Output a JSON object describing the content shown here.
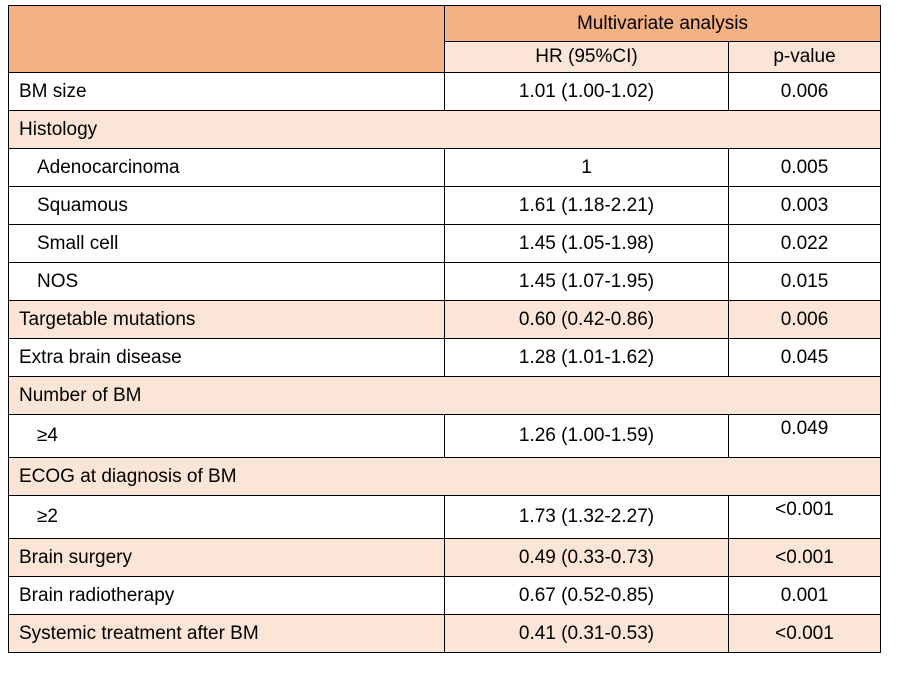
{
  "header": {
    "group_title": "Multivariate analysis",
    "col_hr": "HR (95%CI)",
    "col_p": "p-value"
  },
  "rows": [
    {
      "label": "BM size",
      "hr": "1.01 (1.00-1.02)",
      "p": "0.006"
    },
    {
      "label": "Histology",
      "hr": "",
      "p": ""
    },
    {
      "label": "Adenocarcinoma",
      "hr": "1",
      "p": "0.005"
    },
    {
      "label": "Squamous",
      "hr": "1.61 (1.18-2.21)",
      "p": "0.003"
    },
    {
      "label": "Small cell",
      "hr": "1.45 (1.05-1.98)",
      "p": "0.022"
    },
    {
      "label": "NOS",
      "hr": "1.45 (1.07-1.95)",
      "p": "0.015"
    },
    {
      "label": "Targetable mutations",
      "hr": "0.60 (0.42-0.86)",
      "p": "0.006"
    },
    {
      "label": "Extra brain disease",
      "hr": "1.28 (1.01-1.62)",
      "p": "0.045"
    },
    {
      "label": "Number of BM",
      "hr": "",
      "p": ""
    },
    {
      "label": "≥4",
      "hr": "1.26 (1.00-1.59)",
      "p": "0.049"
    },
    {
      "label": "ECOG at diagnosis of BM",
      "hr": "",
      "p": ""
    },
    {
      "label": "≥2",
      "hr": "1.73 (1.32-2.27)",
      "p": "<0.001"
    },
    {
      "label": "Brain surgery",
      "hr": "0.49 (0.33-0.73)",
      "p": "<0.001"
    },
    {
      "label": "Brain radiotherapy",
      "hr": "0.67 (0.52-0.85)",
      "p": "0.001"
    },
    {
      "label": "Systemic treatment after BM",
      "hr": "0.41 (0.31-0.53)",
      "p": "<0.001"
    }
  ],
  "colors": {
    "header_fill": "#f4b183",
    "band_fill": "#fbe5d6",
    "border": "#000000"
  }
}
